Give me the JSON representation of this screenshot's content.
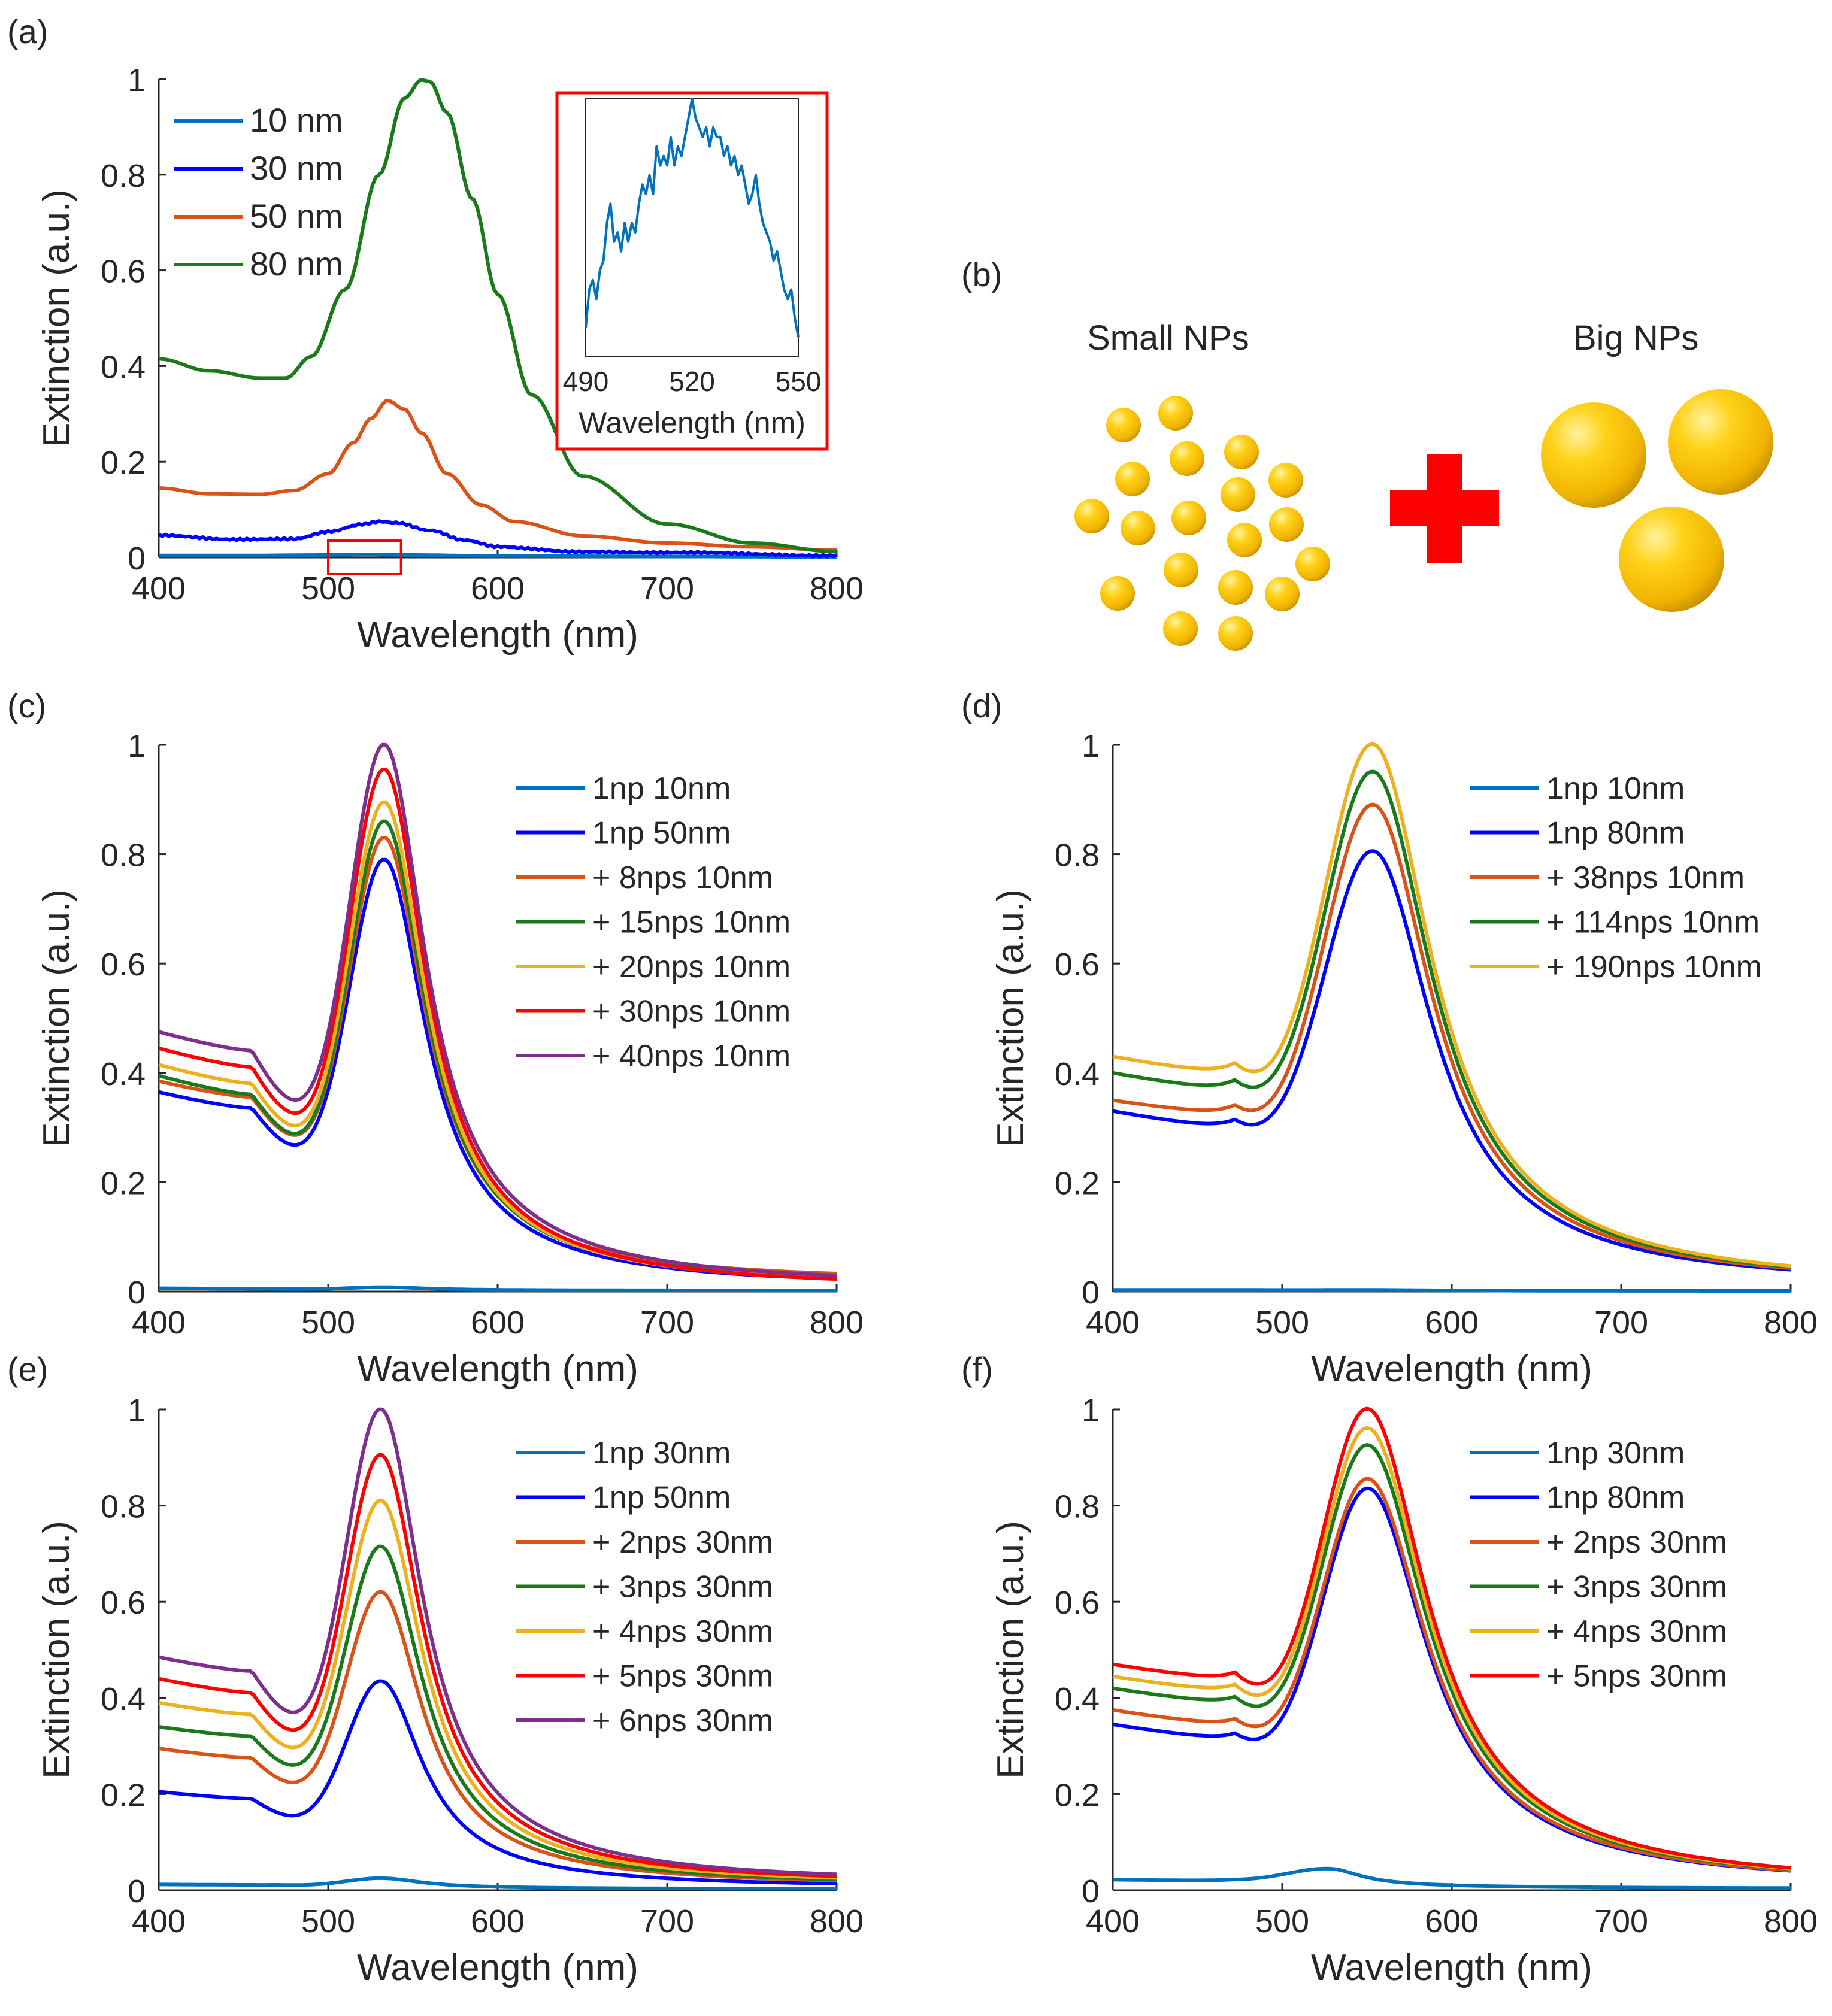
{
  "figure_labels": {
    "a": "(a)",
    "b": "(b)",
    "c": "(c)",
    "d": "(d)",
    "e": "(e)",
    "f": "(f)"
  },
  "schematic": {
    "small_label": "Small NPs",
    "big_label": "Big NPs",
    "plus_symbol": "plus-icon",
    "particle_color": "#f5c000",
    "plus_color": "#ff0000"
  },
  "chart_data": [
    {
      "id": "a",
      "type": "line",
      "xlabel": "Wavelength (nm)",
      "ylabel": "Extinction (a.u.)",
      "xlim": [
        400,
        800
      ],
      "ylim": [
        0,
        1
      ],
      "xticks": [
        400,
        500,
        600,
        700,
        800
      ],
      "yticks": [
        0,
        0.2,
        0.4,
        0.6,
        0.8,
        1
      ],
      "ytick_labels": [
        "0",
        "0.2",
        "0.4",
        "0.6",
        "0.8",
        "1"
      ],
      "legend_position": "top-left",
      "series": [
        {
          "name": "10 nm",
          "color": "#0072bd",
          "x": [
            400,
            450,
            500,
            520,
            550,
            600,
            700,
            800
          ],
          "y": [
            0.004,
            0.004,
            0.005,
            0.006,
            0.005,
            0.003,
            0.002,
            0.001
          ]
        },
        {
          "name": "30 nm",
          "color": "#0000ff",
          "x": [
            400,
            440,
            480,
            500,
            520,
            530,
            540,
            560,
            580,
            600,
            650,
            700,
            800
          ],
          "y": [
            0.045,
            0.037,
            0.04,
            0.055,
            0.07,
            0.075,
            0.072,
            0.055,
            0.035,
            0.022,
            0.013,
            0.009,
            0.005
          ]
        },
        {
          "name": "50 nm",
          "color": "#d95319",
          "x": [
            400,
            430,
            460,
            480,
            500,
            515,
            525,
            535,
            545,
            555,
            570,
            590,
            610,
            650,
            700,
            750,
            800
          ],
          "y": [
            0.145,
            0.133,
            0.132,
            0.14,
            0.175,
            0.24,
            0.29,
            0.328,
            0.31,
            0.26,
            0.175,
            0.11,
            0.075,
            0.045,
            0.03,
            0.022,
            0.015
          ]
        },
        {
          "name": "80 nm",
          "color": "#1a7a1a",
          "x": [
            400,
            430,
            460,
            475,
            490,
            510,
            530,
            545,
            555,
            560,
            570,
            585,
            600,
            620,
            650,
            700,
            750,
            800
          ],
          "y": [
            0.415,
            0.39,
            0.375,
            0.375,
            0.42,
            0.56,
            0.8,
            0.96,
            0.998,
            0.995,
            0.93,
            0.75,
            0.55,
            0.34,
            0.17,
            0.07,
            0.03,
            0.012
          ]
        }
      ],
      "highlight_box": {
        "x": [
          500,
          543
        ],
        "y": [
          -0.035,
          0.035
        ],
        "color": "#ff0000"
      },
      "inset": {
        "xlabel": "Wavelength (nm)",
        "xlim": [
          490,
          550
        ],
        "ylim": [
          0.0035,
          0.0062
        ],
        "xticks": [
          490,
          520,
          550
        ],
        "border_color": "#ff0000",
        "series": {
          "name": "10 nm",
          "color": "#0072bd",
          "x": [
            490,
            491,
            492,
            493,
            494,
            495,
            496,
            497,
            498,
            499,
            500,
            501,
            502,
            503,
            504,
            505,
            506,
            507,
            508,
            509,
            510,
            511,
            512,
            513,
            514,
            515,
            516,
            517,
            518,
            519,
            520,
            521,
            522,
            523,
            524,
            525,
            526,
            527,
            528,
            529,
            530,
            531,
            532,
            533,
            534,
            535,
            536,
            537,
            538,
            539,
            540,
            541,
            542,
            543,
            544,
            545,
            546,
            547,
            548,
            549,
            550
          ],
          "y": [
            0.0038,
            0.0042,
            0.0043,
            0.0041,
            0.0044,
            0.0045,
            0.0049,
            0.0051,
            0.0047,
            0.0048,
            0.0046,
            0.0049,
            0.0047,
            0.0049,
            0.0048,
            0.0051,
            0.0053,
            0.0052,
            0.0054,
            0.0052,
            0.0057,
            0.0055,
            0.0056,
            0.0055,
            0.0058,
            0.0055,
            0.0057,
            0.0056,
            0.0058,
            0.006,
            0.0062,
            0.006,
            0.0059,
            0.0058,
            0.0059,
            0.0057,
            0.0059,
            0.0058,
            0.0058,
            0.0056,
            0.0057,
            0.0055,
            0.0056,
            0.0054,
            0.0055,
            0.0053,
            0.0051,
            0.0052,
            0.0054,
            0.0051,
            0.0049,
            0.0048,
            0.0047,
            0.0045,
            0.0046,
            0.0044,
            0.0042,
            0.0041,
            0.0042,
            0.0039,
            0.0037
          ]
        }
      }
    },
    {
      "id": "c",
      "type": "line",
      "xlabel": "Wavelength (nm)",
      "ylabel": "Extinction (a.u.)",
      "xlim": [
        400,
        800
      ],
      "ylim": [
        0,
        1
      ],
      "xticks": [
        400,
        500,
        600,
        700,
        800
      ],
      "yticks": [
        0,
        0.2,
        0.4,
        0.6,
        0.8,
        1
      ],
      "ytick_labels": [
        "0",
        "0.2",
        "0.4",
        "0.6",
        "0.8",
        "1"
      ],
      "legend_position": "top-right",
      "model": {
        "center": 534,
        "sigma_left": 21,
        "gamma": 28,
        "tail_decay": 75,
        "tail_rate": 0.003,
        "base_rate": 0.0004
      },
      "series": [
        {
          "name": "1np 10nm",
          "color": "#0072bd",
          "base": 0.006,
          "min_at": 460,
          "min": 0.005,
          "peak": 0.008,
          "tail": 0.002
        },
        {
          "name": "1np 50nm",
          "color": "#0000ff",
          "base": 0.365,
          "min_at": 455,
          "min": 0.335,
          "peak": 0.79,
          "tail": 0.013
        },
        {
          "name": "+ 8nps 10nm",
          "color": "#d95319",
          "base": 0.385,
          "min_at": 455,
          "min": 0.355,
          "peak": 0.83,
          "tail": 0.022
        },
        {
          "name": "+ 15nps 10nm",
          "color": "#1a7a1a",
          "base": 0.395,
          "min_at": 455,
          "min": 0.36,
          "peak": 0.86,
          "tail": 0.015
        },
        {
          "name": "+ 20nps 10nm",
          "color": "#edb120",
          "base": 0.415,
          "min_at": 455,
          "min": 0.38,
          "peak": 0.895,
          "tail": 0.012
        },
        {
          "name": "+ 30nps 10nm",
          "color": "#ff0000",
          "base": 0.445,
          "min_at": 455,
          "min": 0.41,
          "peak": 0.955,
          "tail": 0.01
        },
        {
          "name": "+ 40nps 10nm",
          "color": "#7e2f8e",
          "base": 0.475,
          "min_at": 455,
          "min": 0.44,
          "peak": 1.0,
          "tail": 0.016
        }
      ]
    },
    {
      "id": "d",
      "type": "line",
      "xlabel": "Wavelength (nm)",
      "ylabel": "Extinction (a.u.)",
      "xlim": [
        400,
        800
      ],
      "ylim": [
        0,
        1
      ],
      "xticks": [
        400,
        500,
        600,
        700,
        800
      ],
      "yticks": [
        0,
        0.2,
        0.4,
        0.6,
        0.8,
        1
      ],
      "ytick_labels": [
        "0",
        "0.2",
        "0.4",
        "0.6",
        "0.8",
        "1"
      ],
      "legend_position": "top-right",
      "model": {
        "center": 555,
        "sigma_left": 30,
        "gamma": 40,
        "tail_decay": 90,
        "tail_rate": 0.003,
        "base_rate": 0.0004
      },
      "series": [
        {
          "name": "1np 10nm",
          "color": "#0072bd",
          "base": 0.003,
          "min_at": 480,
          "min": 0.003,
          "peak": 0.003,
          "tail": 0.001
        },
        {
          "name": "1np 80nm",
          "color": "#0000ff",
          "base": 0.33,
          "min_at": 472,
          "min": 0.3,
          "peak": 0.805,
          "tail": 0.015
        },
        {
          "name": "+ 38nps 10nm",
          "color": "#d95319",
          "base": 0.35,
          "min_at": 472,
          "min": 0.325,
          "peak": 0.89,
          "tail": 0.015
        },
        {
          "name": "+ 114nps 10nm",
          "color": "#1a7a1a",
          "base": 0.4,
          "min_at": 472,
          "min": 0.37,
          "peak": 0.95,
          "tail": 0.015
        },
        {
          "name": "+ 190nps 10nm",
          "color": "#edb120",
          "base": 0.43,
          "min_at": 472,
          "min": 0.4,
          "peak": 1.0,
          "tail": 0.015
        }
      ]
    },
    {
      "id": "e",
      "type": "line",
      "xlabel": "Wavelength (nm)",
      "ylabel": "Extinction (a.u.)",
      "xlim": [
        400,
        800
      ],
      "ylim": [
        0,
        1
      ],
      "xticks": [
        400,
        500,
        600,
        700,
        800
      ],
      "yticks": [
        0,
        0.2,
        0.4,
        0.6,
        0.8,
        1
      ],
      "ytick_labels": [
        "0",
        "0.2",
        "0.4",
        "0.6",
        "0.8",
        "1"
      ],
      "legend_position": "top-right",
      "model": {
        "center": 532,
        "sigma_left": 21,
        "gamma": 28,
        "tail_decay": 75,
        "tail_rate": 0.003,
        "base_rate": 0.0004
      },
      "series": [
        {
          "name": "1np 30nm",
          "color": "#0072bd",
          "base": 0.012,
          "min_at": 470,
          "min": 0.011,
          "peak": 0.025,
          "tail": 0.003
        },
        {
          "name": "1np 50nm",
          "color": "#0000ff",
          "base": 0.205,
          "min_at": 455,
          "min": 0.19,
          "peak": 0.435,
          "tail": 0.008
        },
        {
          "name": "+ 2nps 30nm",
          "color": "#d95319",
          "base": 0.295,
          "min_at": 455,
          "min": 0.275,
          "peak": 0.62,
          "tail": 0.012
        },
        {
          "name": "+ 3nps 30nm",
          "color": "#1a7a1a",
          "base": 0.34,
          "min_at": 455,
          "min": 0.32,
          "peak": 0.715,
          "tail": 0.013
        },
        {
          "name": "+ 4nps 30nm",
          "color": "#edb120",
          "base": 0.39,
          "min_at": 455,
          "min": 0.365,
          "peak": 0.81,
          "tail": 0.015
        },
        {
          "name": "+ 5nps 30nm",
          "color": "#ff0000",
          "base": 0.44,
          "min_at": 455,
          "min": 0.41,
          "peak": 0.905,
          "tail": 0.017
        },
        {
          "name": "+ 6nps 30nm",
          "color": "#7e2f8e",
          "base": 0.485,
          "min_at": 455,
          "min": 0.455,
          "peak": 1.0,
          "tail": 0.02
        }
      ]
    },
    {
      "id": "f",
      "type": "line",
      "xlabel": "Wavelength (nm)",
      "ylabel": "Extinction (a.u.)",
      "xlim": [
        400,
        800
      ],
      "ylim": [
        0,
        1
      ],
      "xticks": [
        400,
        500,
        600,
        700,
        800
      ],
      "yticks": [
        0,
        0.2,
        0.4,
        0.6,
        0.8,
        1
      ],
      "ytick_labels": [
        "0",
        "0.2",
        "0.4",
        "0.6",
        "0.8",
        "1"
      ],
      "legend_position": "top-right",
      "model": {
        "center": 552,
        "sigma_left": 28,
        "gamma": 40,
        "tail_decay": 90,
        "tail_rate": 0.003,
        "base_rate": 0.0004
      },
      "series": [
        {
          "name": "1np 30nm",
          "color": "#0072bd",
          "base": 0.022,
          "min_at": 470,
          "min": 0.02,
          "peak": 0.045,
          "tail": 0.004,
          "center": 528,
          "sigma_left": 25,
          "gamma": 22
        },
        {
          "name": "1np 80nm",
          "color": "#0000ff",
          "base": 0.345,
          "min_at": 472,
          "min": 0.315,
          "peak": 0.835,
          "tail": 0.015
        },
        {
          "name": "+ 2nps 30nm",
          "color": "#d95319",
          "base": 0.375,
          "min_at": 472,
          "min": 0.345,
          "peak": 0.855,
          "tail": 0.015
        },
        {
          "name": "+ 3nps 30nm",
          "color": "#1a7a1a",
          "base": 0.42,
          "min_at": 472,
          "min": 0.39,
          "peak": 0.925,
          "tail": 0.015
        },
        {
          "name": "+ 4nps 30nm",
          "color": "#edb120",
          "base": 0.445,
          "min_at": 472,
          "min": 0.415,
          "peak": 0.96,
          "tail": 0.015
        },
        {
          "name": "+ 5nps 30nm",
          "color": "#ff0000",
          "base": 0.47,
          "min_at": 472,
          "min": 0.44,
          "peak": 1.0,
          "tail": 0.015
        }
      ]
    }
  ]
}
